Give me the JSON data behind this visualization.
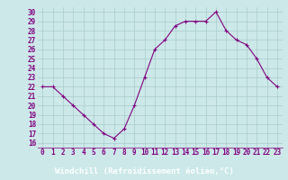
{
  "x": [
    0,
    1,
    2,
    3,
    4,
    5,
    6,
    7,
    8,
    9,
    10,
    11,
    12,
    13,
    14,
    15,
    16,
    17,
    18,
    19,
    20,
    21,
    22,
    23
  ],
  "y": [
    22,
    22,
    21,
    20,
    19,
    18,
    17,
    16.5,
    17.5,
    20,
    23,
    26,
    27,
    28.5,
    29,
    29,
    29,
    30,
    28,
    27,
    26.5,
    25,
    23,
    22
  ],
  "line_color": "#800080",
  "marker": "+",
  "marker_color": "#800080",
  "bg_color": "#cce8e8",
  "grid_color": "#aacccc",
  "xlabel": "Windchill (Refroidissement éolien,°C)",
  "xlabel_color": "#ffffff",
  "xlabel_bg": "#800080",
  "ylabel_ticks": [
    16,
    17,
    18,
    19,
    20,
    21,
    22,
    23,
    24,
    25,
    26,
    27,
    28,
    29,
    30
  ],
  "xlim": [
    -0.5,
    23.5
  ],
  "ylim": [
    15.5,
    30.5
  ],
  "tick_label_color": "#800080",
  "tick_fontsize": 5.5,
  "xlabel_fontsize": 6.5,
  "line_width": 0.8,
  "marker_size": 3.5
}
